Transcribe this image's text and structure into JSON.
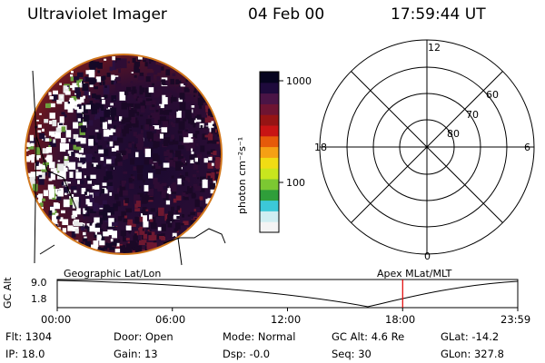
{
  "header": {
    "instrument": "Ultraviolet Imager",
    "date": "04 Feb 00",
    "time": "17:59:44 UT"
  },
  "colorbar": {
    "unit_label": "photon cm⁻²s⁻¹",
    "ticks": [
      "1000",
      "100"
    ],
    "colors": [
      "#f4f4f4",
      "#cfeef2",
      "#3cc8d8",
      "#2f9e3a",
      "#7cc832",
      "#c8e61e",
      "#f0dc14",
      "#f5a014",
      "#e65a0a",
      "#c81414",
      "#961414",
      "#6e1432",
      "#4a1446",
      "#1e0a3c",
      "#06041e"
    ]
  },
  "polar_plot": {
    "mlt_labels": [
      "12",
      "18",
      "6",
      "0"
    ],
    "lat_labels": [
      "60",
      "70",
      "80"
    ]
  },
  "timeline": {
    "y_label": "GC Alt",
    "y_ticks": [
      "9.0",
      "1.8"
    ],
    "left_caption": "Geographic Lat/Lon",
    "right_caption": "Apex MLat/MLT",
    "time_ticks": [
      "00:00",
      "06:00",
      "12:00",
      "18:00",
      "23:59"
    ],
    "current_time_fraction": 0.75,
    "marker_color": "#e00000"
  },
  "footer": {
    "flt": "Flt: 1304",
    "ip": "IP: 18.0",
    "door": "Door: Open",
    "gain": "Gain: 13",
    "mode": "Mode: Normal",
    "dsp": "Dsp:    -0.0",
    "gc_alt": "GC Alt: 4.6 Re",
    "seq": "Seq: 30",
    "glat": "GLat: -14.2",
    "glon": "GLon: 327.8"
  }
}
